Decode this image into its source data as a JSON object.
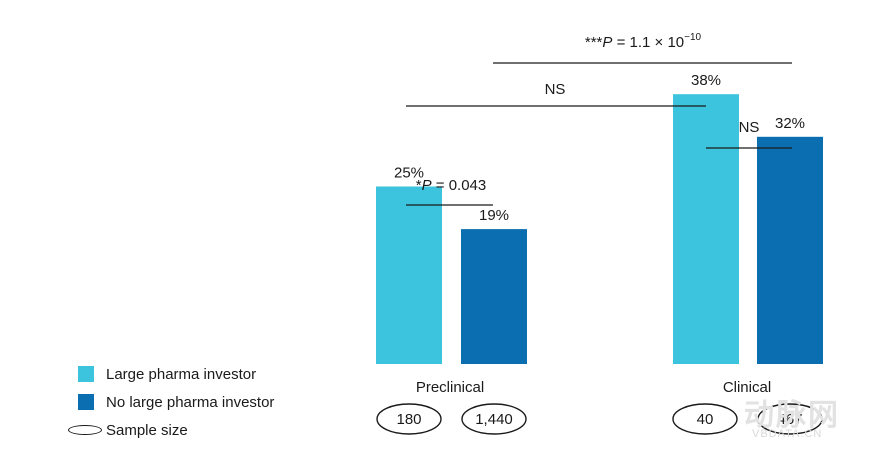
{
  "chart_data": {
    "type": "bar",
    "categories": [
      "Preclinical",
      "Clinical"
    ],
    "series": [
      {
        "name": "Large pharma investor",
        "values": [
          25,
          38
        ],
        "labels": [
          "25%",
          "38%"
        ],
        "sample_sizes": [
          "180",
          "40"
        ]
      },
      {
        "name": "No large pharma investor",
        "values": [
          19,
          32
        ],
        "labels": [
          "19%",
          "32%"
        ],
        "sample_sizes": [
          "1,440",
          "467"
        ]
      }
    ],
    "ylim": [
      0,
      40
    ],
    "colors": {
      "large": "#3cc3dd",
      "no_large": "#0b6eb0",
      "text": "#1a1a1a"
    },
    "annotations": {
      "pre_p_prefix": "*",
      "pre_p_label": "P",
      "pre_p_value": " =  0.043",
      "clinical_ns": "NS",
      "large_ns": "NS",
      "top_p_prefix": "***",
      "top_p_label": "P",
      "top_p_value": " = 1.1 × 10",
      "top_p_exp": "−10"
    },
    "legend": {
      "large": "Large pharma investor",
      "no_large": "No large pharma investor",
      "sample": "Sample size"
    }
  },
  "watermark": {
    "big": "动脉网",
    "small": "VBDATA.CN"
  }
}
